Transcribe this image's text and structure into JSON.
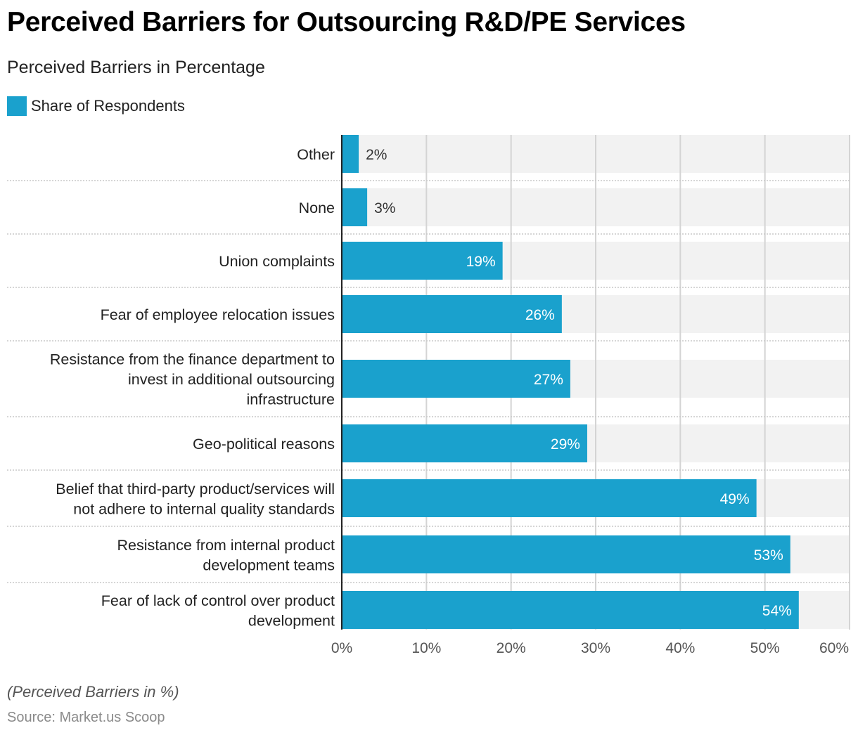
{
  "chart_data": {
    "type": "bar",
    "orientation": "horizontal",
    "title": "Perceived Barriers for Outsourcing R&D/PE Services",
    "subtitle": "Perceived Barriers in Percentage",
    "xlabel": "",
    "ylabel": "",
    "xlim": [
      0,
      60
    ],
    "x_ticks": [
      "0%",
      "10%",
      "20%",
      "30%",
      "40%",
      "50%",
      "60%"
    ],
    "grid": true,
    "legend_position": "top-left",
    "series": [
      {
        "name": "Share of Respondents",
        "color": "#1aa1cd",
        "values": [
          2,
          3,
          19,
          26,
          27,
          29,
          49,
          53,
          54
        ],
        "labels": [
          "2%",
          "3%",
          "19%",
          "26%",
          "27%",
          "29%",
          "49%",
          "53%",
          "54%"
        ]
      }
    ],
    "categories": [
      [
        "Other"
      ],
      [
        "None"
      ],
      [
        "Union complaints"
      ],
      [
        "Fear of employee relocation issues"
      ],
      [
        "Resistance from the finance department to",
        "invest in additional outsourcing",
        "infrastructure"
      ],
      [
        "Geo-political reasons"
      ],
      [
        "Belief that third-party product/services will",
        "not adhere to internal quality standards"
      ],
      [
        "Resistance from internal product",
        "development teams"
      ],
      [
        "Fear of lack of control over product",
        "development"
      ]
    ],
    "footnote": "(Perceived Barriers in %)",
    "source": "Source: Market.us Scoop"
  },
  "colors": {
    "bar": "#1aa1cd",
    "track": "#f2f2f2",
    "grid": "#d4d4d4",
    "axis": "#222222"
  }
}
